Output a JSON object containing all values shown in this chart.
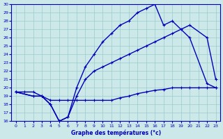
{
  "xlabel": "Graphe des températures (°c)",
  "background_color": "#cce8e8",
  "grid_color": "#99cccc",
  "line_color": "#0000bb",
  "xlim": [
    -0.5,
    23.5
  ],
  "ylim": [
    16,
    30
  ],
  "xticks": [
    0,
    1,
    2,
    3,
    4,
    5,
    6,
    7,
    8,
    9,
    10,
    11,
    12,
    13,
    14,
    15,
    16,
    17,
    18,
    19,
    20,
    21,
    22,
    23
  ],
  "yticks": [
    16,
    17,
    18,
    19,
    20,
    21,
    22,
    23,
    24,
    25,
    26,
    27,
    28,
    29,
    30
  ],
  "line1_x": [
    0,
    1,
    2,
    3,
    4,
    5,
    6,
    7,
    8,
    9,
    10,
    11,
    12,
    13,
    14,
    15,
    16,
    17,
    18,
    19,
    20,
    21,
    22,
    23
  ],
  "line1_y": [
    19.5,
    19.5,
    19.5,
    19.0,
    18.5,
    18.5,
    18.5,
    18.5,
    18.5,
    18.5,
    18.5,
    18.5,
    18.8,
    19.0,
    19.3,
    19.5,
    19.7,
    19.8,
    20.0,
    20.0,
    20.0,
    20.0,
    20.0,
    20.0
  ],
  "line2_x": [
    0,
    2,
    3,
    4,
    5,
    6,
    7,
    8,
    9,
    10,
    11,
    12,
    13,
    14,
    15,
    16,
    17,
    18,
    19,
    20,
    22,
    23
  ],
  "line2_y": [
    19.5,
    19.0,
    19.0,
    18.0,
    16.0,
    16.5,
    19.0,
    21.0,
    22.0,
    22.5,
    23.0,
    23.5,
    24.0,
    24.5,
    25.0,
    25.5,
    26.0,
    26.5,
    27.0,
    27.5,
    26.0,
    21.0
  ],
  "line3_x": [
    0,
    2,
    3,
    4,
    5,
    6,
    7,
    8,
    9,
    10,
    11,
    12,
    13,
    14,
    15,
    16,
    17,
    18,
    20,
    22,
    23
  ],
  "line3_y": [
    19.5,
    19.0,
    19.0,
    18.0,
    16.0,
    16.5,
    20.0,
    22.5,
    24.0,
    25.5,
    26.5,
    27.5,
    28.0,
    29.0,
    29.5,
    30.0,
    27.5,
    28.0,
    26.0,
    20.5,
    20.0
  ]
}
